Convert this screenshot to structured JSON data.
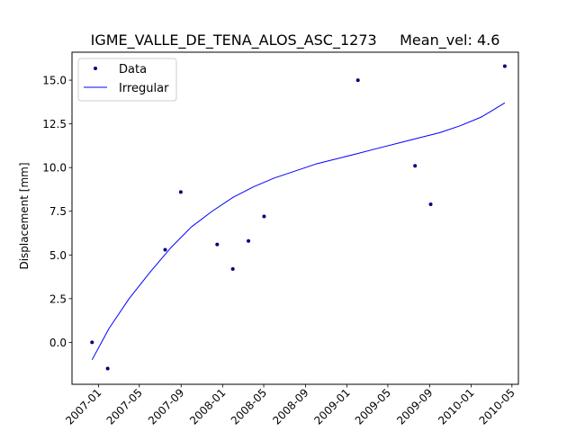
{
  "chart_data": {
    "type": "scatter",
    "title": "IGME_VALLE_DE_TENA_ALOS_ASC_1273     Mean_vel: 4.6",
    "xlabel": "",
    "ylabel": "Displacement [mm]",
    "x_axis_type": "date",
    "xlim": [
      "2006-10-15",
      "2010-05-20"
    ],
    "ylim": [
      -2.4,
      16.6
    ],
    "x_ticks": [
      "2007-01",
      "2007-05",
      "2007-09",
      "2008-01",
      "2008-05",
      "2008-09",
      "2009-01",
      "2009-05",
      "2009-09",
      "2010-01",
      "2010-05"
    ],
    "y_ticks": [
      0.0,
      2.5,
      5.0,
      7.5,
      10.0,
      12.5,
      15.0
    ],
    "y_tick_labels": [
      "0.0",
      "2.5",
      "5.0",
      "7.5",
      "10.0",
      "12.5",
      "15.0"
    ],
    "legend_position": "top-left",
    "grid": false,
    "series": [
      {
        "name": "Data",
        "kind": "scatter",
        "color": "#000080",
        "x": [
          "2006-12-13",
          "2007-01-28",
          "2007-07-16",
          "2007-08-31",
          "2007-12-16",
          "2008-01-31",
          "2008-03-17",
          "2008-05-02",
          "2009-02-02",
          "2009-07-20",
          "2009-09-04",
          "2010-04-10"
        ],
        "y": [
          0.0,
          -1.5,
          5.3,
          8.6,
          5.6,
          4.2,
          5.8,
          7.2,
          15.0,
          10.1,
          7.9,
          15.8
        ]
      },
      {
        "name": "Irregular",
        "kind": "line",
        "color": "#0000ff",
        "x": [
          "2006-12-13",
          "2007-02-01",
          "2007-04-01",
          "2007-06-01",
          "2007-08-01",
          "2007-10-01",
          "2007-12-01",
          "2008-02-01",
          "2008-04-01",
          "2008-06-01",
          "2008-08-01",
          "2008-10-01",
          "2008-12-01",
          "2009-02-01",
          "2009-04-01",
          "2009-06-01",
          "2009-08-01",
          "2009-10-01",
          "2009-12-01",
          "2010-02-01",
          "2010-04-10"
        ],
        "y": [
          -1.0,
          0.8,
          2.5,
          4.0,
          5.4,
          6.6,
          7.5,
          8.3,
          8.9,
          9.4,
          9.8,
          10.2,
          10.5,
          10.8,
          11.1,
          11.4,
          11.7,
          12.0,
          12.4,
          12.9,
          13.7
        ]
      }
    ]
  }
}
